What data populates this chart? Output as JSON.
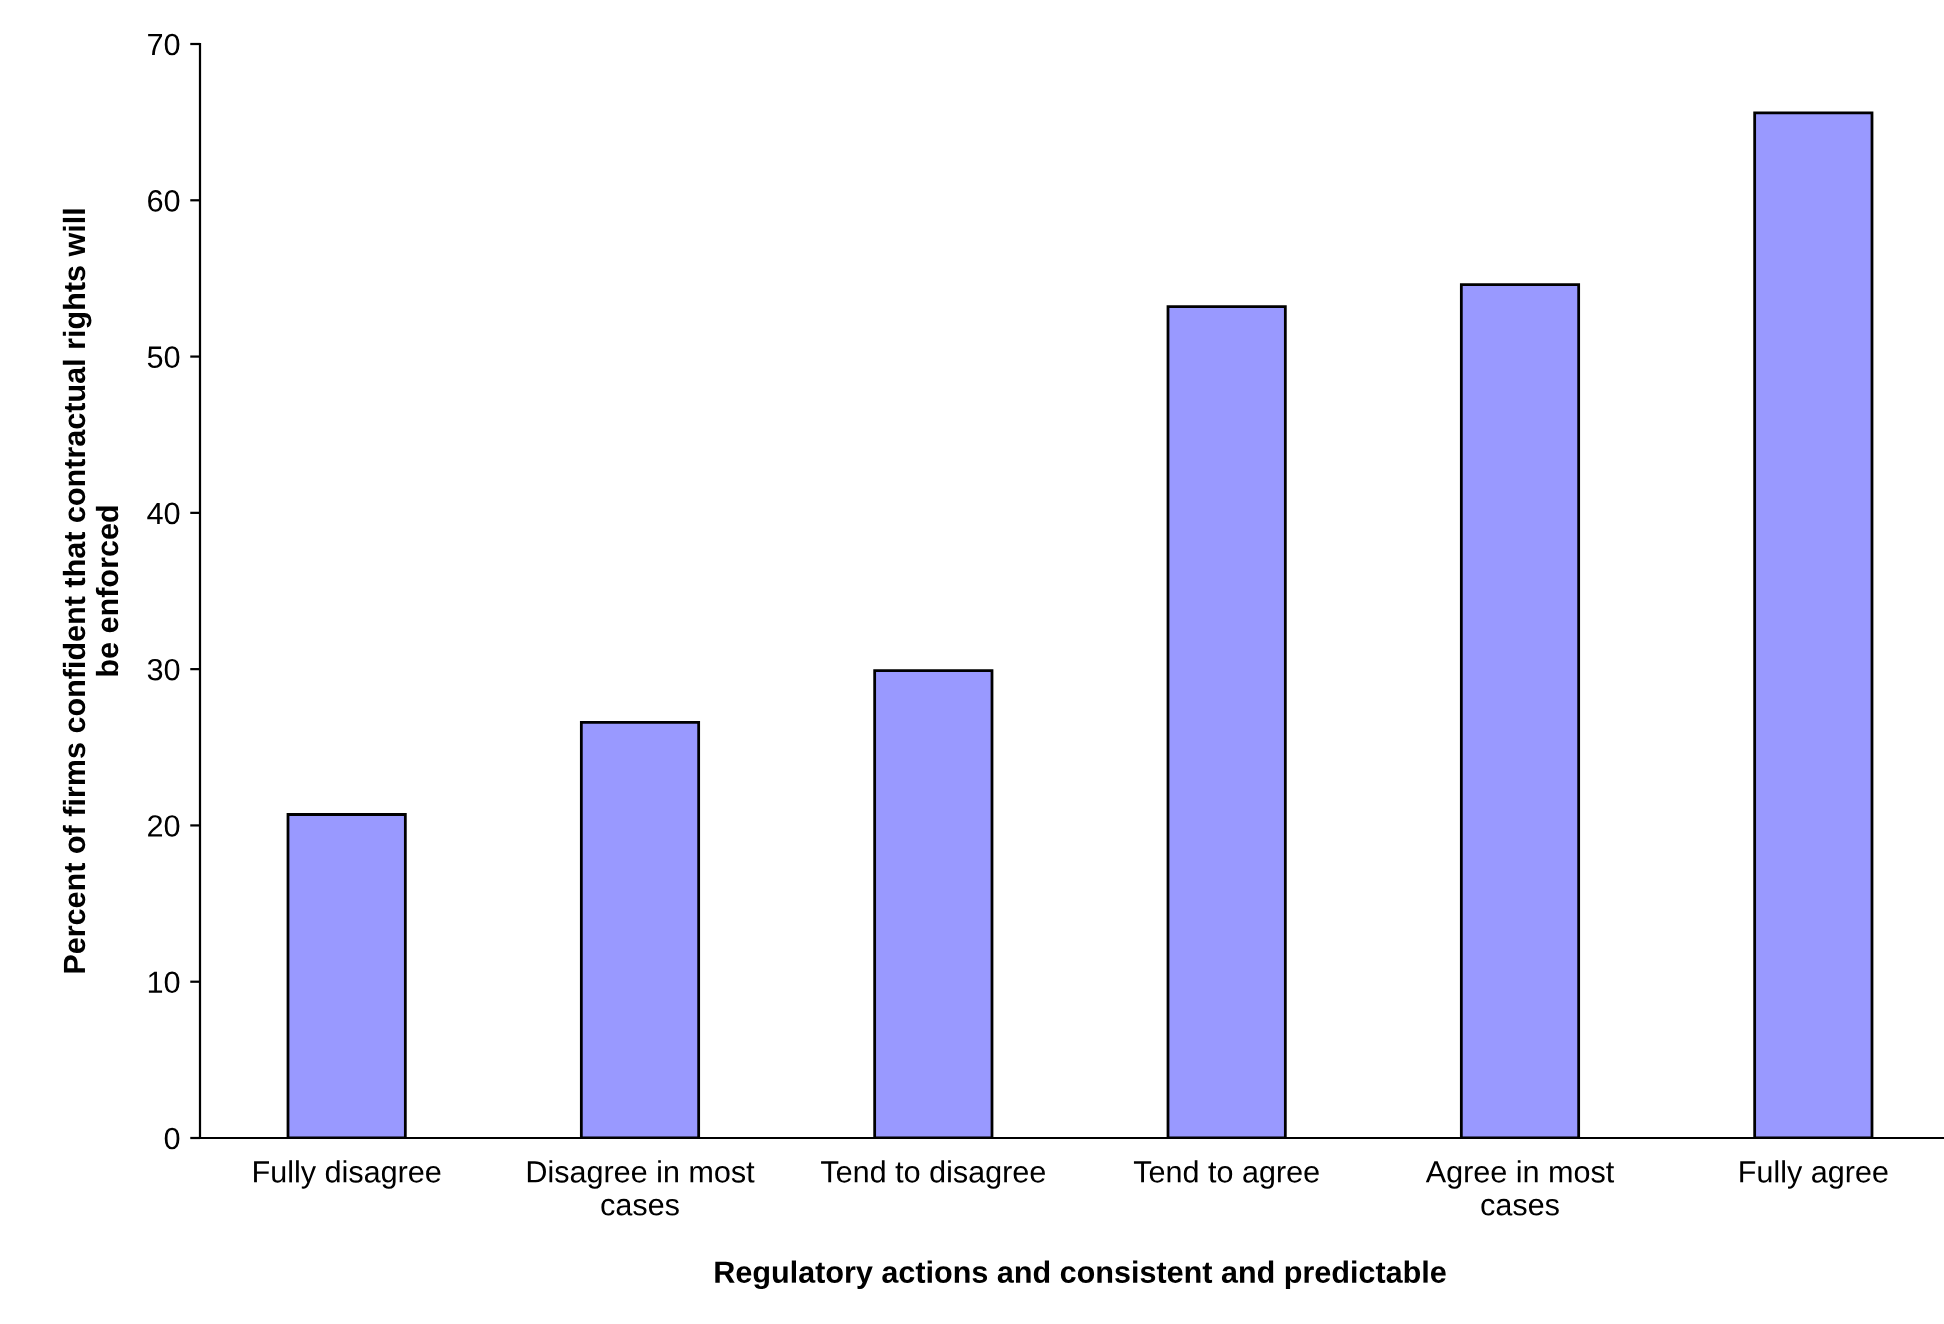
{
  "chart_data": {
    "type": "bar",
    "xlabel": "Regulatory actions and consistent and predictable",
    "ylabel": "Percent of firms confident that contractual rights will be enforced",
    "categories": [
      "Fully disagree",
      "Disagree in most cases",
      "Tend to disagree",
      "Tend to agree",
      "Agree in most cases",
      "Fully agree"
    ],
    "values": [
      20.7,
      26.6,
      29.9,
      53.2,
      54.6,
      65.6
    ],
    "color": "#9999ff",
    "ylim": [
      0,
      70
    ],
    "yticks": [
      0,
      10,
      20,
      30,
      40,
      50,
      60,
      70
    ],
    "grid": false,
    "legend": false
  }
}
